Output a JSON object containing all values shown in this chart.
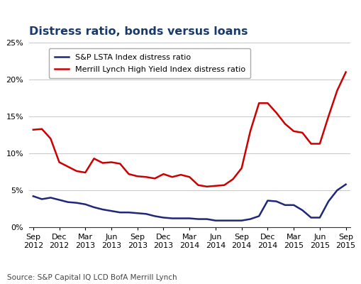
{
  "title": "Distress ratio, bonds versus loans",
  "source": "Source: S&P Capital IQ LCD BofA Merrill Lynch",
  "x_labels": [
    "Sep\n2012",
    "Dec\n2012",
    "Mar\n2013",
    "Jun\n2013",
    "Sep\n2013",
    "Dec\n2013",
    "Mar\n2014",
    "Jun\n2014",
    "Sep\n2014",
    "Dec\n2014",
    "Mar\n2015",
    "Jun\n2015",
    "Sep\n2015"
  ],
  "x_positions": [
    0,
    3,
    6,
    9,
    12,
    15,
    18,
    21,
    24,
    27,
    30,
    33,
    36
  ],
  "sp_lsta": {
    "label": "S&P LSTA Index distress ratio",
    "color": "#1f2878",
    "values_x": [
      0,
      1,
      2,
      3,
      4,
      5,
      6,
      7,
      8,
      9,
      10,
      11,
      12,
      13,
      14,
      15,
      16,
      17,
      18,
      19,
      20,
      21,
      22,
      23,
      24,
      25,
      26,
      27,
      28,
      29,
      30,
      31,
      32,
      33,
      34,
      35,
      36
    ],
    "values_y": [
      0.042,
      0.038,
      0.04,
      0.037,
      0.034,
      0.033,
      0.031,
      0.027,
      0.024,
      0.022,
      0.02,
      0.02,
      0.019,
      0.018,
      0.015,
      0.013,
      0.012,
      0.012,
      0.012,
      0.011,
      0.011,
      0.009,
      0.009,
      0.009,
      0.009,
      0.011,
      0.015,
      0.036,
      0.035,
      0.03,
      0.03,
      0.023,
      0.013,
      0.013,
      0.035,
      0.05,
      0.058
    ]
  },
  "merrill": {
    "label": "Merrill Lynch High Yield Index distress ratio",
    "color": "#cc0000",
    "values_x": [
      0,
      1,
      2,
      3,
      4,
      5,
      6,
      7,
      8,
      9,
      10,
      11,
      12,
      13,
      14,
      15,
      16,
      17,
      18,
      19,
      20,
      21,
      22,
      23,
      24,
      25,
      26,
      27,
      28,
      29,
      30,
      31,
      32,
      33,
      34,
      35,
      36
    ],
    "values_y": [
      0.132,
      0.133,
      0.12,
      0.088,
      0.082,
      0.076,
      0.074,
      0.093,
      0.087,
      0.088,
      0.086,
      0.072,
      0.069,
      0.068,
      0.066,
      0.072,
      0.068,
      0.071,
      0.068,
      0.057,
      0.055,
      0.056,
      0.057,
      0.065,
      0.08,
      0.13,
      0.168,
      0.168,
      0.155,
      0.14,
      0.13,
      0.128,
      0.113,
      0.113,
      0.15,
      0.185,
      0.21
    ]
  },
  "ylim": [
    0,
    0.25
  ],
  "yticks": [
    0,
    0.05,
    0.1,
    0.15,
    0.2,
    0.25
  ],
  "background_color": "#ffffff",
  "grid_color": "#c8c8c8",
  "linewidth": 1.8,
  "title_color": "#1a3a6b",
  "title_fontsize": 11.5,
  "tick_fontsize": 8.0,
  "legend_fontsize": 8.0,
  "source_fontsize": 7.5
}
